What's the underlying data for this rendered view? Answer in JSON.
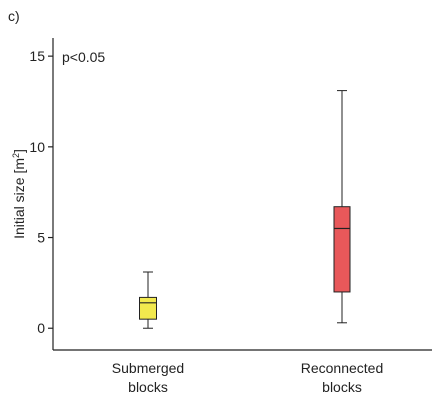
{
  "panel_label": "c)",
  "chart_data": {
    "type": "box",
    "annotation": "p<0.05",
    "ylabel": "Initial size [m",
    "ylabel_sup": "2",
    "ylabel_close": "]",
    "ylim": [
      -1.2,
      16
    ],
    "yticks": [
      0,
      5,
      10,
      15
    ],
    "ytick_labels": [
      "0",
      "5",
      "10",
      "15"
    ],
    "grid": false,
    "categories": [
      {
        "label_lines": [
          "Submerged",
          "blocks"
        ],
        "whisker_low": 0.0,
        "q1": 0.5,
        "median": 1.4,
        "q3": 1.7,
        "whisker_high": 3.1,
        "color": "#f2e94e"
      },
      {
        "label_lines": [
          "Reconnected",
          "blocks"
        ],
        "whisker_low": 0.3,
        "q1": 2.0,
        "median": 5.5,
        "q3": 6.7,
        "whisker_high": 13.1,
        "color": "#e8585a"
      }
    ]
  }
}
